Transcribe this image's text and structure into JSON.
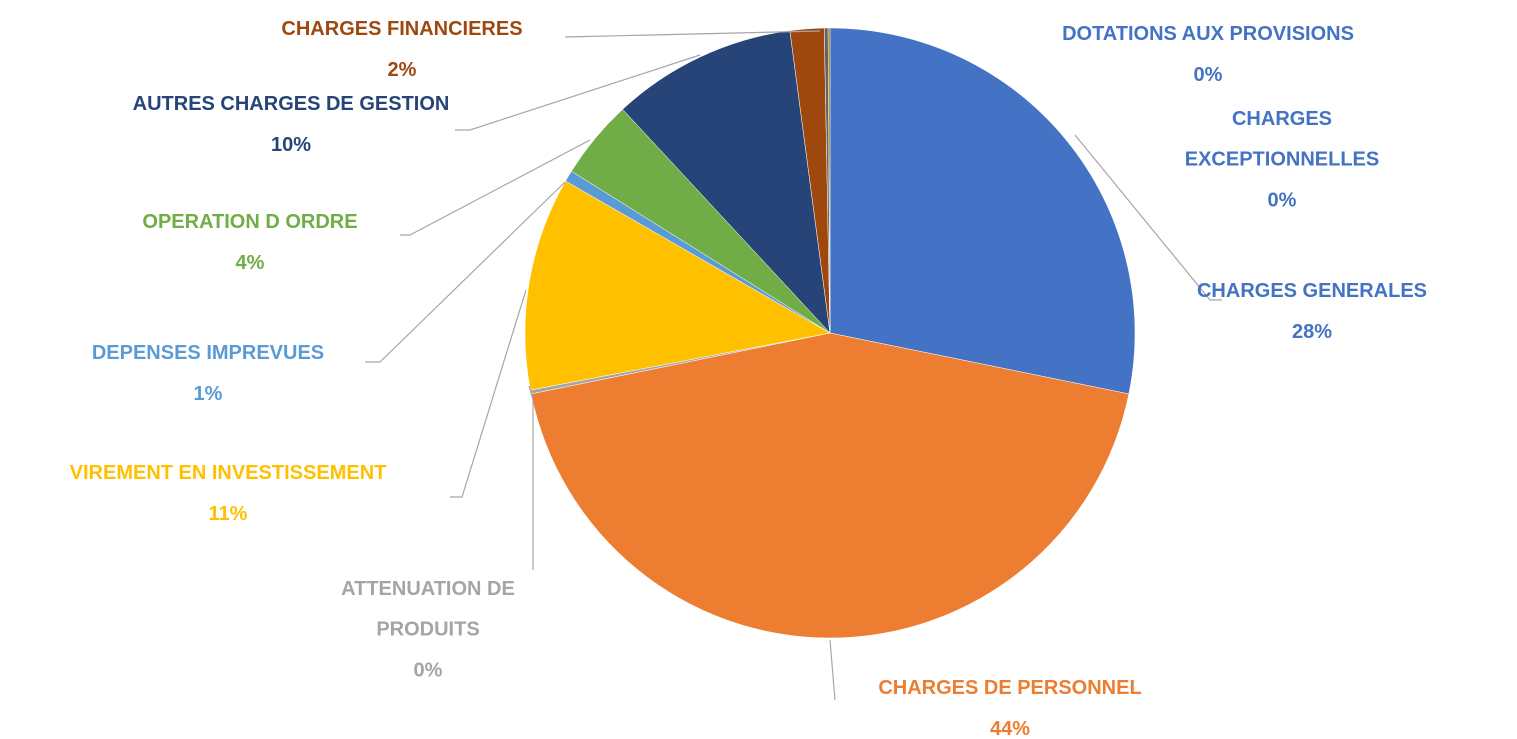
{
  "chart_data": {
    "type": "pie",
    "categories": [
      "CHARGES GENERALES",
      "CHARGES DE PERSONNEL",
      "ATTENUATION DE PRODUITS",
      "VIREMENT EN INVESTISSEMENT",
      "DEPENSES IMPREVUES",
      "OPERATION D ORDRE",
      "AUTRES CHARGES DE GESTION",
      "CHARGES FINANCIERES",
      "CHARGES EXCEPTIONNELLES",
      "DOTATIONS AUX PROVISIONS"
    ],
    "values": [
      28.2,
      43.6,
      0.2,
      11.3,
      0.6,
      4.2,
      9.8,
      1.8,
      0.2,
      0.1
    ],
    "value_labels": [
      "28%",
      "44%",
      "0%",
      "11%",
      "1%",
      "4%",
      "10%",
      "2%",
      "0%",
      "0%"
    ],
    "colors": [
      "#4472c4",
      "#ed7d31",
      "#a5a5a5",
      "#ffc000",
      "#5b9bd5",
      "#70ad47",
      "#264478",
      "#9e480e",
      "#636363",
      "#997300"
    ],
    "label_colors": [
      "#4472c4",
      "#ed7d31",
      "#a5a5a5",
      "#ffc000",
      "#5b9bd5",
      "#70ad47",
      "#264478",
      "#9e480e",
      "#4472c4",
      "#4472c4"
    ]
  }
}
